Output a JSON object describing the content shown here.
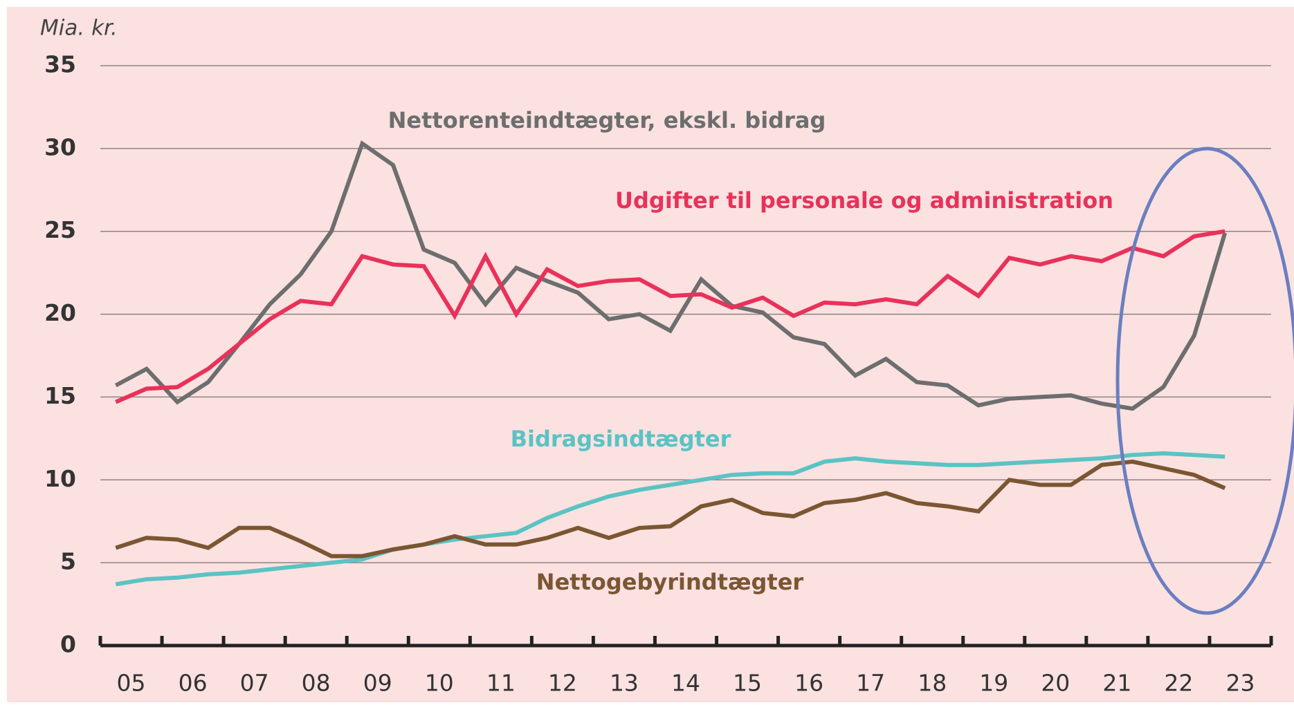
{
  "chart_data": {
    "type": "line",
    "ylabel": "Mia. kr.",
    "x": [
      2005.25,
      2005.75,
      2006.25,
      2006.75,
      2007.25,
      2007.75,
      2008.25,
      2008.75,
      2009.25,
      2009.75,
      2010.25,
      2010.75,
      2011.25,
      2011.75,
      2012.25,
      2012.75,
      2013.25,
      2013.75,
      2014.25,
      2014.75,
      2015.25,
      2015.75,
      2016.25,
      2016.75,
      2017.25,
      2017.75,
      2018.25,
      2018.75,
      2019.25,
      2019.75,
      2020.25,
      2020.75,
      2021.25,
      2021.75,
      2022.25,
      2022.75,
      2023.25
    ],
    "xlim": [
      2005,
      2024
    ],
    "xticks": [
      {
        "value": 2005.5,
        "label": "05"
      },
      {
        "value": 2006.5,
        "label": "06"
      },
      {
        "value": 2007.5,
        "label": "07"
      },
      {
        "value": 2008.5,
        "label": "08"
      },
      {
        "value": 2009.5,
        "label": "09"
      },
      {
        "value": 2010.5,
        "label": "10"
      },
      {
        "value": 2011.5,
        "label": "11"
      },
      {
        "value": 2012.5,
        "label": "12"
      },
      {
        "value": 2013.5,
        "label": "13"
      },
      {
        "value": 2014.5,
        "label": "14"
      },
      {
        "value": 2015.5,
        "label": "15"
      },
      {
        "value": 2016.5,
        "label": "16"
      },
      {
        "value": 2017.5,
        "label": "17"
      },
      {
        "value": 2018.5,
        "label": "18"
      },
      {
        "value": 2019.5,
        "label": "19"
      },
      {
        "value": 2020.5,
        "label": "20"
      },
      {
        "value": 2021.5,
        "label": "21"
      },
      {
        "value": 2022.5,
        "label": "22"
      },
      {
        "value": 2023.5,
        "label": "23"
      }
    ],
    "xminor_ticks": [
      2005,
      2006,
      2007,
      2008,
      2009,
      2010,
      2011,
      2012,
      2013,
      2014,
      2015,
      2016,
      2017,
      2018,
      2019,
      2020,
      2021,
      2022,
      2023,
      2024
    ],
    "ylim": [
      0,
      35
    ],
    "yticks": [
      0,
      5,
      10,
      15,
      20,
      25,
      30,
      35
    ],
    "grid": true,
    "series": [
      {
        "name": "Nettorenteindtægter, ekskl. bidrag",
        "color": "#6d6e6e",
        "values": [
          15.7,
          16.7,
          14.7,
          15.9,
          18.2,
          20.6,
          22.4,
          25.0,
          30.3,
          29.0,
          23.9,
          23.1,
          20.6,
          22.8,
          22.0,
          21.3,
          19.7,
          20.0,
          19.0,
          22.1,
          20.5,
          20.1,
          18.6,
          18.2,
          16.3,
          17.3,
          15.9,
          15.7,
          14.5,
          14.9,
          15.0,
          15.1,
          14.6,
          14.3,
          15.6,
          18.7,
          24.9
        ]
      },
      {
        "name": "Udgifter til personale og administration",
        "color": "#e8325a",
        "values": [
          14.7,
          15.5,
          15.6,
          16.7,
          18.2,
          19.7,
          20.8,
          20.6,
          23.5,
          23.0,
          22.9,
          19.9,
          23.5,
          20.0,
          22.7,
          21.7,
          22.0,
          22.1,
          21.1,
          21.2,
          20.4,
          21.0,
          19.9,
          20.7,
          20.6,
          20.9,
          20.6,
          22.3,
          21.1,
          23.4,
          23.0,
          23.5,
          23.2,
          24.0,
          23.5,
          24.7,
          25.0
        ]
      },
      {
        "name": "Bidragsindtægter",
        "color": "#5bc3c3",
        "values": [
          3.7,
          4.0,
          4.1,
          4.3,
          4.4,
          4.6,
          4.8,
          5.0,
          5.2,
          5.8,
          6.1,
          6.4,
          6.6,
          6.8,
          7.7,
          8.4,
          9.0,
          9.4,
          9.7,
          10.0,
          10.3,
          10.4,
          10.4,
          11.1,
          11.3,
          11.1,
          11.0,
          10.9,
          10.9,
          11.0,
          11.1,
          11.2,
          11.3,
          11.5,
          11.6,
          11.5,
          11.4
        ]
      },
      {
        "name": "Nettogebyrindtægter",
        "color": "#7a5632",
        "values": [
          5.9,
          6.5,
          6.4,
          5.9,
          7.1,
          7.1,
          6.3,
          5.4,
          5.4,
          5.8,
          6.1,
          6.6,
          6.1,
          6.1,
          6.5,
          7.1,
          6.5,
          7.1,
          7.2,
          8.4,
          8.8,
          8.0,
          7.8,
          8.6,
          8.8,
          9.2,
          8.6,
          8.4,
          8.1,
          10.0,
          9.7,
          9.7,
          10.9,
          11.1,
          10.7,
          10.3,
          9.5
        ]
      }
    ]
  }
}
